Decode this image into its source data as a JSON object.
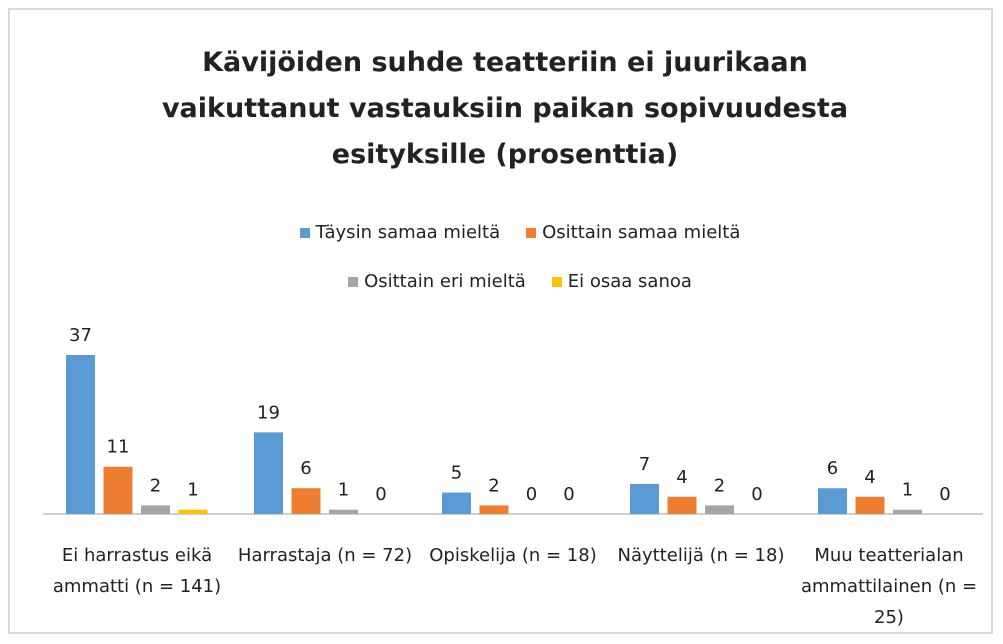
{
  "chart_data": {
    "type": "bar",
    "title": "Kävijöiden suhde teatteriin ei juurikaan vaikuttanut vastauksiin paikan sopivuudesta esityksille (prosenttia)",
    "categories": [
      "Ei harrastus eikä ammatti (n = 141)",
      "Harrastaja (n = 72)",
      "Opiskelija (n = 18)",
      "Näyttelijä (n = 18)",
      "Muu teatterialan ammattilainen (n = 25)"
    ],
    "series": [
      {
        "name": "Täysin samaa mieltä",
        "color": "#5b9bd5",
        "values": [
          37,
          19,
          5,
          7,
          6
        ]
      },
      {
        "name": "Osittain samaa mieltä",
        "color": "#ed7d31",
        "values": [
          11,
          6,
          2,
          4,
          4
        ]
      },
      {
        "name": "Osittain eri mieltä",
        "color": "#a5a5a5",
        "values": [
          2,
          1,
          0,
          2,
          1
        ]
      },
      {
        "name": "Ei osaa sanoa",
        "color": "#ffc000",
        "values": [
          1,
          0,
          0,
          0,
          0
        ]
      }
    ]
  }
}
